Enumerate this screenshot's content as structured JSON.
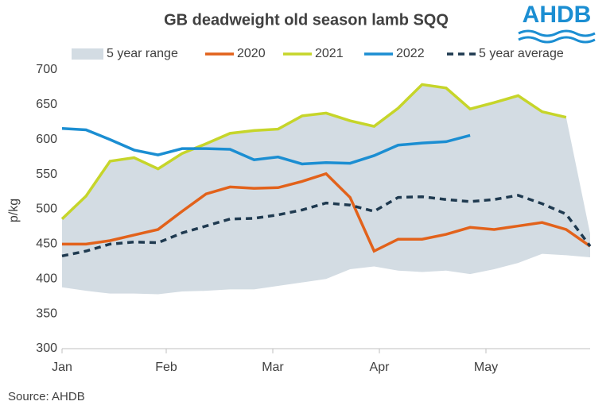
{
  "chart_data": {
    "type": "line",
    "title": "GB deadweight old season lamb SQQ",
    "logo": "AHDB",
    "source": "Source: AHDB",
    "y_label": "p/kg",
    "x": [
      0,
      1,
      2,
      3,
      4,
      5,
      6,
      7,
      8,
      9,
      10,
      11,
      12,
      13,
      14,
      15,
      16,
      17,
      18,
      19,
      20,
      21,
      22
    ],
    "xlim": [
      0,
      22
    ],
    "xticks": [
      {
        "value": 0,
        "label": "Jan"
      },
      {
        "value": 4.34,
        "label": "Feb"
      },
      {
        "value": 8.78,
        "label": "Mar"
      },
      {
        "value": 13.22,
        "label": "Apr"
      },
      {
        "value": 17.66,
        "label": "May"
      }
    ],
    "ylim": [
      300,
      700
    ],
    "yticks": [
      300,
      350,
      400,
      450,
      500,
      550,
      600,
      650,
      700
    ],
    "grid": false,
    "range": {
      "name": "5 year range",
      "color": "#d3dce3",
      "lower": [
        388,
        383,
        379,
        379,
        378,
        382,
        383,
        385,
        385,
        390,
        395,
        400,
        414,
        418,
        412,
        410,
        412,
        407,
        414,
        423,
        436,
        434,
        431
      ],
      "upper": [
        486,
        519,
        569,
        574,
        558,
        580,
        594,
        609,
        613,
        615,
        634,
        638,
        627,
        619,
        645,
        679,
        674,
        644,
        653,
        663,
        640,
        632,
        465
      ]
    },
    "series": [
      {
        "name": "2020",
        "color": "#e2621b",
        "dash": false,
        "values": [
          450,
          450,
          455,
          463,
          471,
          497,
          522,
          532,
          530,
          531,
          540,
          551,
          517,
          440,
          457,
          457,
          464,
          474,
          471,
          476,
          481,
          471,
          447
        ]
      },
      {
        "name": "2021",
        "color": "#c6d52a",
        "dash": false,
        "values": [
          486,
          519,
          569,
          574,
          558,
          580,
          594,
          609,
          613,
          615,
          634,
          638,
          627,
          619,
          645,
          679,
          674,
          644,
          653,
          663,
          640,
          632,
          null
        ]
      },
      {
        "name": "2022",
        "color": "#1b8ed2",
        "dash": false,
        "values": [
          616,
          614,
          600,
          585,
          578,
          587,
          587,
          586,
          571,
          575,
          565,
          567,
          566,
          577,
          592,
          595,
          597,
          606,
          null,
          null,
          null,
          null,
          null
        ]
      },
      {
        "name": "5 year average",
        "color": "#1f3a50",
        "dash": true,
        "values": [
          433,
          440,
          450,
          453,
          452,
          466,
          476,
          486,
          487,
          492,
          499,
          509,
          506,
          497,
          517,
          518,
          514,
          511,
          514,
          520,
          508,
          493,
          447
        ]
      }
    ]
  }
}
